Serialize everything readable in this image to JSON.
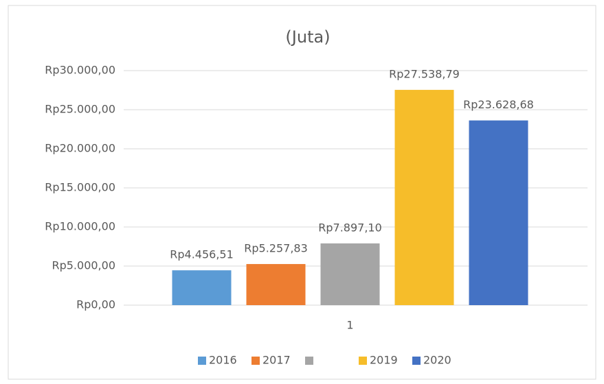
{
  "chart_data": {
    "type": "bar",
    "title": "(Juta)",
    "categories": [
      "1"
    ],
    "series": [
      {
        "name": "2016",
        "color": "#5b9bd5",
        "values": [
          4456.51
        ],
        "value_labels": [
          "Rp4.456,51"
        ]
      },
      {
        "name": "2017",
        "color": "#ed7d31",
        "values": [
          5257.83
        ],
        "value_labels": [
          "Rp5.257,83"
        ]
      },
      {
        "name": null,
        "color": "#a5a5a5",
        "values": [
          7897.1
        ],
        "value_labels": [
          "Rp7.897,10"
        ]
      },
      {
        "name": "2019",
        "color": "#f6bd2a",
        "values": [
          27538.79
        ],
        "value_labels": [
          "Rp27.538,79"
        ]
      },
      {
        "name": "2020",
        "color": "#4472c4",
        "values": [
          23628.68
        ],
        "value_labels": [
          "Rp23.628,68"
        ]
      }
    ],
    "ylim": [
      0,
      30000
    ],
    "yticks": [
      {
        "value": 0,
        "label": "Rp0,00"
      },
      {
        "value": 5000,
        "label": "Rp5.000,00"
      },
      {
        "value": 10000,
        "label": "Rp10.000,00"
      },
      {
        "value": 15000,
        "label": "Rp15.000,00"
      },
      {
        "value": 20000,
        "label": "Rp20.000,00"
      },
      {
        "value": 25000,
        "label": "Rp25.000,00"
      },
      {
        "value": 30000,
        "label": "Rp30.000,00"
      }
    ],
    "grid": true,
    "legend": "bottom"
  }
}
